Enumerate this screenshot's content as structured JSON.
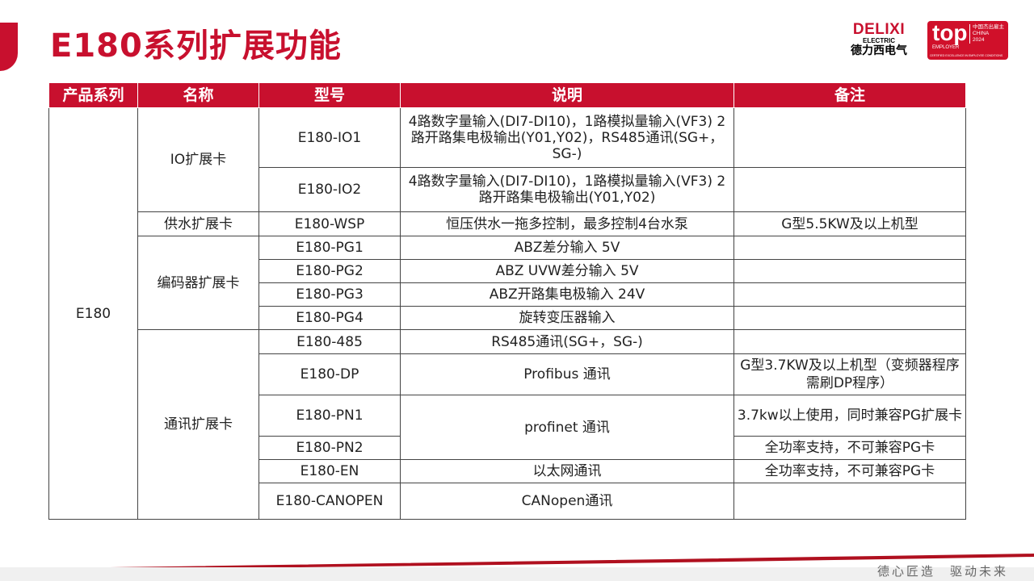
{
  "title": "E180系列扩展功能",
  "logo": {
    "brand": "DELIXI",
    "sub": "ELECTRIC",
    "cn": "德力西电气"
  },
  "badge": {
    "top": "top",
    "employer": "EMPLOYER",
    "region": "中国杰出雇主",
    "country": "CHINA",
    "year": "2024",
    "footnote": "CERTIFIED EXCELLENCE IN EMPLOYEE CONDITIONS"
  },
  "table": {
    "headers": [
      "产品系列",
      "名称",
      "型号",
      "说明",
      "备注"
    ],
    "series": "E180",
    "groups": [
      "IO扩展卡",
      "供水扩展卡",
      "编码器扩展卡",
      "通讯扩展卡"
    ],
    "rows": [
      {
        "model": "E180-IO1",
        "desc": "4路数字量输入(DI7-DI10)，1路模拟量输入(VF3) 2路开路集电极输出(Y01,Y02)，RS485通讯(SG+，SG-)",
        "note": ""
      },
      {
        "model": "E180-IO2",
        "desc": "4路数字量输入(DI7-DI10)，1路模拟量输入(VF3) 2路开路集电极输出(Y01,Y02)",
        "note": ""
      },
      {
        "model": "E180-WSP",
        "desc": "恒压供水一拖多控制，最多控制4台水泵",
        "note": "G型5.5KW及以上机型"
      },
      {
        "model": "E180-PG1",
        "desc": "ABZ差分输入 5V",
        "note": ""
      },
      {
        "model": "E180-PG2",
        "desc": "ABZ UVW差分输入 5V",
        "note": ""
      },
      {
        "model": "E180-PG3",
        "desc": "ABZ开路集电极输入 24V",
        "note": ""
      },
      {
        "model": "E180-PG4",
        "desc": "旋转变压器输入",
        "note": ""
      },
      {
        "model": "E180-485",
        "desc": "RS485通讯(SG+，SG-)",
        "note": ""
      },
      {
        "model": "E180-DP",
        "desc": "Profibus 通讯",
        "note": "G型3.7KW及以上机型（变频器程序需刷DP程序）"
      },
      {
        "model": "E180-PN1",
        "desc": "profinet 通讯",
        "note": "3.7kw以上使用，同时兼容PG扩展卡"
      },
      {
        "model": "E180-PN2",
        "desc": "",
        "note": "全功率支持，不可兼容PG卡"
      },
      {
        "model": "E180-EN",
        "desc": "以太网通讯",
        "note": "全功率支持，不可兼容PG卡"
      },
      {
        "model": "E180-CANOPEN",
        "desc": "CANopen通讯",
        "note": ""
      }
    ]
  },
  "footer": {
    "slogan": "德心匠造　驱动未来"
  },
  "colors": {
    "accent": "#c8102e"
  }
}
